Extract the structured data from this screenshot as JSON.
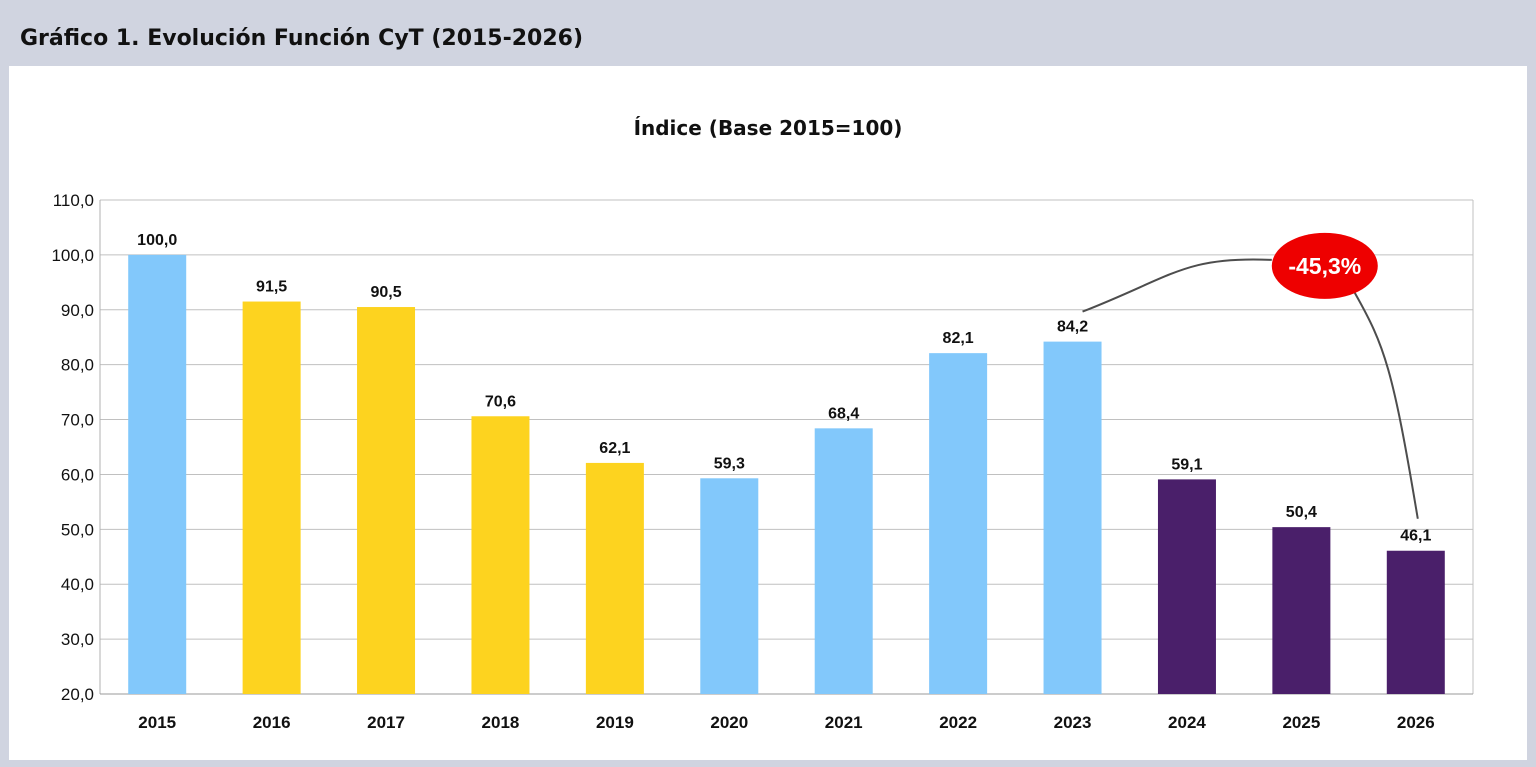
{
  "header": {
    "title": "Gráfico 1. Evolución Función CyT (2015-2026)"
  },
  "colors": {
    "background": "#d0d4e0",
    "panel": "#ffffff",
    "grid": "#c0c0c0",
    "blue": "#82c8fb",
    "yellow": "#fdd31f",
    "purple": "#4a1f6a",
    "callout": "#ee0000",
    "callout_text": "#ffffff",
    "connector": "#4d4d4d"
  },
  "chart_data": {
    "type": "bar",
    "title": "Índice (Base 2015=100)",
    "xlabel": "",
    "ylabel": "",
    "categories": [
      "2015",
      "2016",
      "2017",
      "2018",
      "2019",
      "2020",
      "2021",
      "2022",
      "2023",
      "2024",
      "2025",
      "2026"
    ],
    "values": [
      100.0,
      91.5,
      90.5,
      70.6,
      62.1,
      59.3,
      68.4,
      82.1,
      84.2,
      59.1,
      50.4,
      46.1
    ],
    "value_labels": [
      "100,0",
      "91,5",
      "90,5",
      "70,6",
      "62,1",
      "59,3",
      "68,4",
      "82,1",
      "84,2",
      "59,1",
      "50,4",
      "46,1"
    ],
    "bar_colors": [
      "blue",
      "yellow",
      "yellow",
      "yellow",
      "yellow",
      "blue",
      "blue",
      "blue",
      "blue",
      "purple",
      "purple",
      "purple"
    ],
    "ylim": [
      20,
      110
    ],
    "yticks": [
      20,
      30,
      40,
      50,
      60,
      70,
      80,
      90,
      100,
      110
    ],
    "ytick_labels": [
      "20,0",
      "30,0",
      "40,0",
      "50,0",
      "60,0",
      "70,0",
      "80,0",
      "90,0",
      "100,0",
      "110,0"
    ],
    "grid": true,
    "legend": "none",
    "annotation": {
      "text": "-45,3%",
      "from_category": "2023",
      "to_category": "2026"
    }
  }
}
